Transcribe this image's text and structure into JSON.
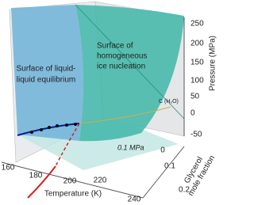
{
  "labels": {
    "liquid_liquid": [
      "Surface of liquid-",
      "liquid equilibrium"
    ],
    "ice_nucleation": [
      "Surface of",
      "homogeneous",
      "ice nucleation"
    ],
    "critical_point": "C (H₂O)",
    "isobar": "0.1 MPa"
  },
  "axes": {
    "temperature": {
      "label": "Temperature (K)",
      "ticks": [
        "160",
        "180",
        "200",
        "220",
        "240"
      ]
    },
    "glycerol": {
      "label": [
        "Glycerol",
        "mole fraction"
      ],
      "ticks": [
        "0",
        "0.1",
        "0.2"
      ]
    },
    "pressure": {
      "label": "Pressure (MPa)",
      "ticks": [
        "250",
        "200",
        "150",
        "100",
        "50",
        "0",
        "-50"
      ]
    }
  }
}
